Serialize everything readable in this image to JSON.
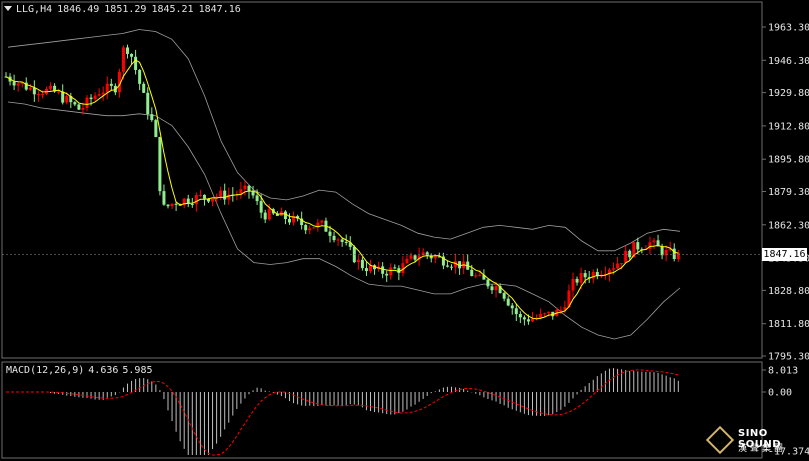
{
  "header": {
    "symbol": "LLG,H4",
    "open": "1846.49",
    "high": "1851.29",
    "low": "1845.21",
    "close": "1847.16"
  },
  "macd": {
    "label": "MACD(12,26,9)",
    "main_value": "4.636",
    "signal_value": "5.985",
    "ticks": [
      "8.013",
      "0.00",
      "-17.374"
    ]
  },
  "current_price": "1847.16",
  "logo": {
    "name": "SINO SOUND",
    "sub": "漢聲集團"
  },
  "colors": {
    "bull": "#ff0000",
    "bear": "#90ee90",
    "ma": "#ffff00",
    "bands": "#a0a0a0",
    "macd_hist": "#c0c0c0",
    "macd_signal": "#ff0000"
  },
  "chart_data": {
    "type": "candlestick",
    "price_axis": {
      "ylim": [
        1795.3,
        1963.3
      ],
      "ticks": [
        "1963.30",
        "1946.30",
        "1929.80",
        "1912.80",
        "1895.80",
        "1879.30",
        "1862.30",
        "1845.30",
        "1828.80",
        "1811.80",
        "1795.30"
      ]
    },
    "bollinger_upper": [
      1953,
      1954,
      1955,
      1956,
      1957,
      1958,
      1959,
      1960,
      1962,
      1961,
      1957,
      1947,
      1928,
      1905,
      1889,
      1880,
      1876,
      1875,
      1877,
      1880,
      1879,
      1873,
      1868,
      1865,
      1862,
      1858,
      1856,
      1855,
      1858,
      1861,
      1862,
      1861,
      1860,
      1862,
      1861,
      1854,
      1849,
      1849,
      1853,
      1858,
      1860,
      1859
    ],
    "bollinger_lower": [
      1925,
      1924,
      1922,
      1921,
      1920,
      1919,
      1918,
      1918,
      1919,
      1918,
      1913,
      1902,
      1888,
      1868,
      1850,
      1843,
      1842,
      1843,
      1845,
      1845,
      1841,
      1836,
      1832,
      1831,
      1831,
      1829,
      1827,
      1827,
      1830,
      1832,
      1832,
      1831,
      1827,
      1823,
      1816,
      1810,
      1806,
      1804,
      1806,
      1814,
      1823,
      1830
    ]
  }
}
